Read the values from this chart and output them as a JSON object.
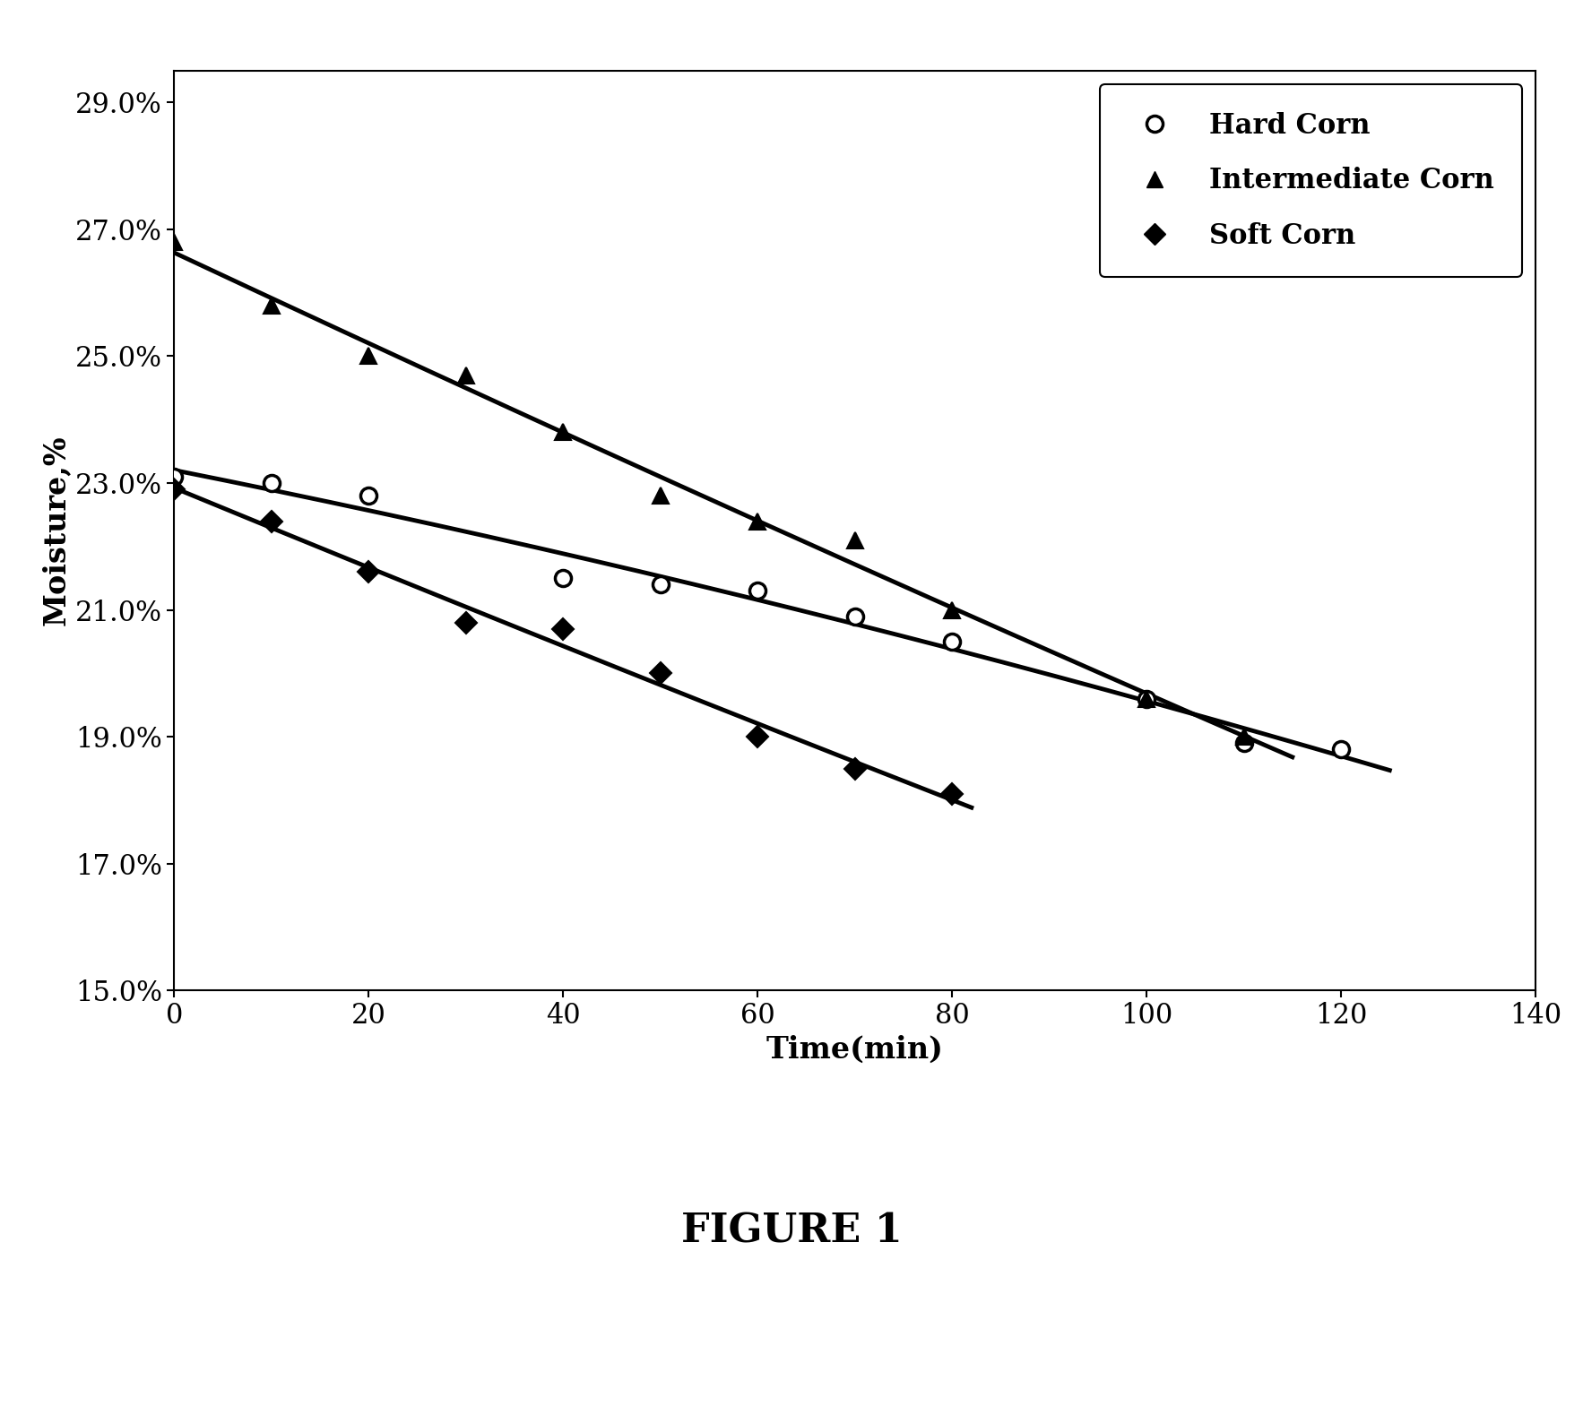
{
  "title": "FIGURE 1",
  "xlabel": "Time(min)",
  "ylabel": "Moisture,%",
  "xlim": [
    0,
    140
  ],
  "ylim": [
    0.15,
    0.295
  ],
  "yticks": [
    0.15,
    0.17,
    0.19,
    0.21,
    0.23,
    0.25,
    0.27,
    0.29
  ],
  "ytick_labels": [
    "15.0%",
    "17.0%",
    "19.0%",
    "21.0%",
    "23.0%",
    "25.0%",
    "27.0%",
    "29.0%"
  ],
  "xticks": [
    0,
    20,
    40,
    60,
    80,
    100,
    120,
    140
  ],
  "hard_corn_x": [
    0,
    10,
    20,
    40,
    50,
    60,
    70,
    80,
    100,
    110,
    120
  ],
  "hard_corn_y": [
    0.231,
    0.23,
    0.228,
    0.215,
    0.214,
    0.213,
    0.209,
    0.205,
    0.196,
    0.189,
    0.188
  ],
  "intermediate_corn_x": [
    0,
    10,
    20,
    30,
    40,
    50,
    60,
    70,
    80,
    100,
    110
  ],
  "intermediate_corn_y": [
    0.268,
    0.258,
    0.25,
    0.247,
    0.238,
    0.228,
    0.224,
    0.221,
    0.21,
    0.196,
    0.19
  ],
  "soft_corn_x": [
    0,
    10,
    20,
    30,
    40,
    50,
    60,
    70,
    80
  ],
  "soft_corn_y": [
    0.229,
    0.224,
    0.216,
    0.208,
    0.207,
    0.2,
    0.19,
    0.185,
    0.181
  ],
  "line_color": "#000000",
  "marker_color": "#000000",
  "bg_color": "#ffffff",
  "figure_label_fontsize": 32,
  "axis_label_fontsize": 24,
  "tick_fontsize": 22,
  "legend_fontsize": 22
}
